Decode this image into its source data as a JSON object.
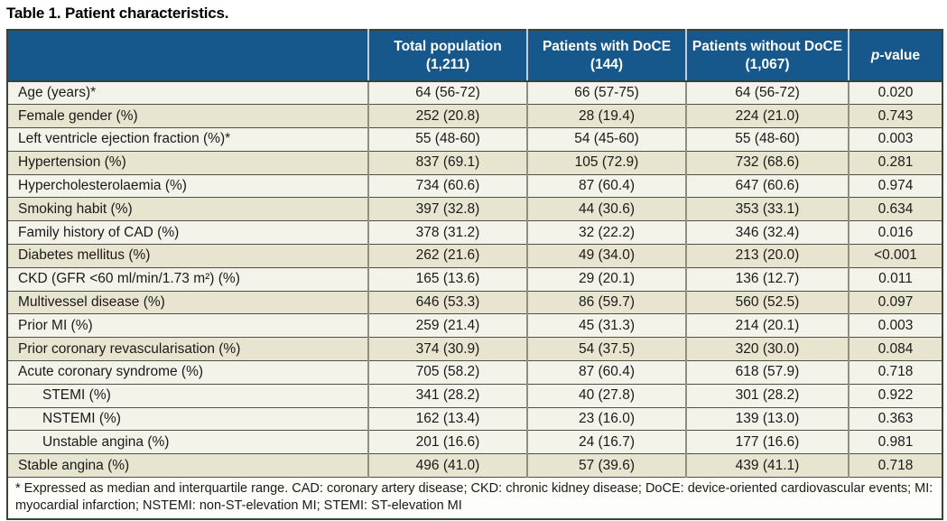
{
  "title": "Table 1. Patient characteristics.",
  "colors": {
    "header_bg": "#16578C",
    "header_text": "#FFFFFF",
    "header_divider": "#C3CEDB",
    "row_light": "#F4F3EA",
    "row_shaded": "#E7E4CF",
    "border_dark": "#3F403A",
    "border_row": "#4E4F47",
    "border_col": "#8F8E84",
    "text": "#1A1A1A"
  },
  "table": {
    "columns": [
      {
        "label": ""
      },
      {
        "line1": "Total population",
        "line2": "(1,211)"
      },
      {
        "line1": "Patients with DoCE",
        "line2": "(144)"
      },
      {
        "line1": "Patients without DoCE",
        "line2": "(1,067)"
      },
      {
        "italic": "p",
        "rest": "-value"
      }
    ],
    "rows": [
      {
        "label": "Age (years)*",
        "total": "64 (56-72)",
        "with_doce": "66 (57-75)",
        "without_doce": "64 (56-72)",
        "p": "0.020",
        "shaded": false,
        "indent": false
      },
      {
        "label": "Female gender (%)",
        "total": "252 (20.8)",
        "with_doce": "28 (19.4)",
        "without_doce": "224 (21.0)",
        "p": "0.743",
        "shaded": true,
        "indent": false
      },
      {
        "label": "Left ventricle ejection fraction (%)*",
        "total": "55 (48-60)",
        "with_doce": "54 (45-60)",
        "without_doce": "55 (48-60)",
        "p": "0.003",
        "shaded": false,
        "indent": false
      },
      {
        "label": "Hypertension (%)",
        "total": "837 (69.1)",
        "with_doce": "105 (72.9)",
        "without_doce": "732 (68.6)",
        "p": "0.281",
        "shaded": true,
        "indent": false
      },
      {
        "label": "Hypercholesterolaemia (%)",
        "total": "734 (60.6)",
        "with_doce": "87 (60.4)",
        "without_doce": "647 (60.6)",
        "p": "0.974",
        "shaded": false,
        "indent": false
      },
      {
        "label": "Smoking habit (%)",
        "total": "397 (32.8)",
        "with_doce": "44 (30.6)",
        "without_doce": "353 (33.1)",
        "p": "0.634",
        "shaded": true,
        "indent": false
      },
      {
        "label": "Family history of CAD (%)",
        "total": "378 (31.2)",
        "with_doce": "32 (22.2)",
        "without_doce": "346 (32.4)",
        "p": "0.016",
        "shaded": false,
        "indent": false
      },
      {
        "label": "Diabetes mellitus (%)",
        "total": "262 (21.6)",
        "with_doce": "49 (34.0)",
        "without_doce": "213 (20.0)",
        "p": "<0.001",
        "shaded": true,
        "indent": false
      },
      {
        "label": "CKD (GFR <60 ml/min/1.73 m²) (%)",
        "total": "165 (13.6)",
        "with_doce": "29 (20.1)",
        "without_doce": "136 (12.7)",
        "p": "0.011",
        "shaded": false,
        "indent": false
      },
      {
        "label": "Multivessel disease (%)",
        "total": "646 (53.3)",
        "with_doce": "86 (59.7)",
        "without_doce": "560 (52.5)",
        "p": "0.097",
        "shaded": true,
        "indent": false
      },
      {
        "label": "Prior MI (%)",
        "total": "259 (21.4)",
        "with_doce": "45 (31.3)",
        "without_doce": "214 (20.1)",
        "p": "0.003",
        "shaded": false,
        "indent": false
      },
      {
        "label": "Prior coronary revascularisation (%)",
        "total": "374 (30.9)",
        "with_doce": "54 (37.5)",
        "without_doce": "320 (30.0)",
        "p": "0.084",
        "shaded": true,
        "indent": false
      },
      {
        "label": "Acute coronary syndrome (%)",
        "total": "705 (58.2)",
        "with_doce": "87 (60.4)",
        "without_doce": "618 (57.9)",
        "p": "0.718",
        "shaded": false,
        "indent": false
      },
      {
        "label": "STEMI (%)",
        "total": "341 (28.2)",
        "with_doce": "40 (27.8)",
        "without_doce": "301 (28.2)",
        "p": "0.922",
        "shaded": false,
        "indent": true
      },
      {
        "label": "NSTEMI (%)",
        "total": "162 (13.4)",
        "with_doce": "23 (16.0)",
        "without_doce": "139 (13.0)",
        "p": "0.363",
        "shaded": false,
        "indent": true
      },
      {
        "label": "Unstable angina (%)",
        "total": "201 (16.6)",
        "with_doce": "24 (16.7)",
        "without_doce": "177 (16.6)",
        "p": "0.981",
        "shaded": false,
        "indent": true
      },
      {
        "label": "Stable angina (%)",
        "total": "496 (41.0)",
        "with_doce": "57 (39.6)",
        "without_doce": "439 (41.1)",
        "p": "0.718",
        "shaded": true,
        "indent": false
      }
    ]
  },
  "footnote": "* Expressed as median and interquartile range. CAD: coronary artery disease; CKD: chronic kidney disease; DoCE: device-oriented cardiovascular events; MI: myocardial infarction; NSTEMI: non-ST-elevation MI; STEMI: ST-elevation MI"
}
